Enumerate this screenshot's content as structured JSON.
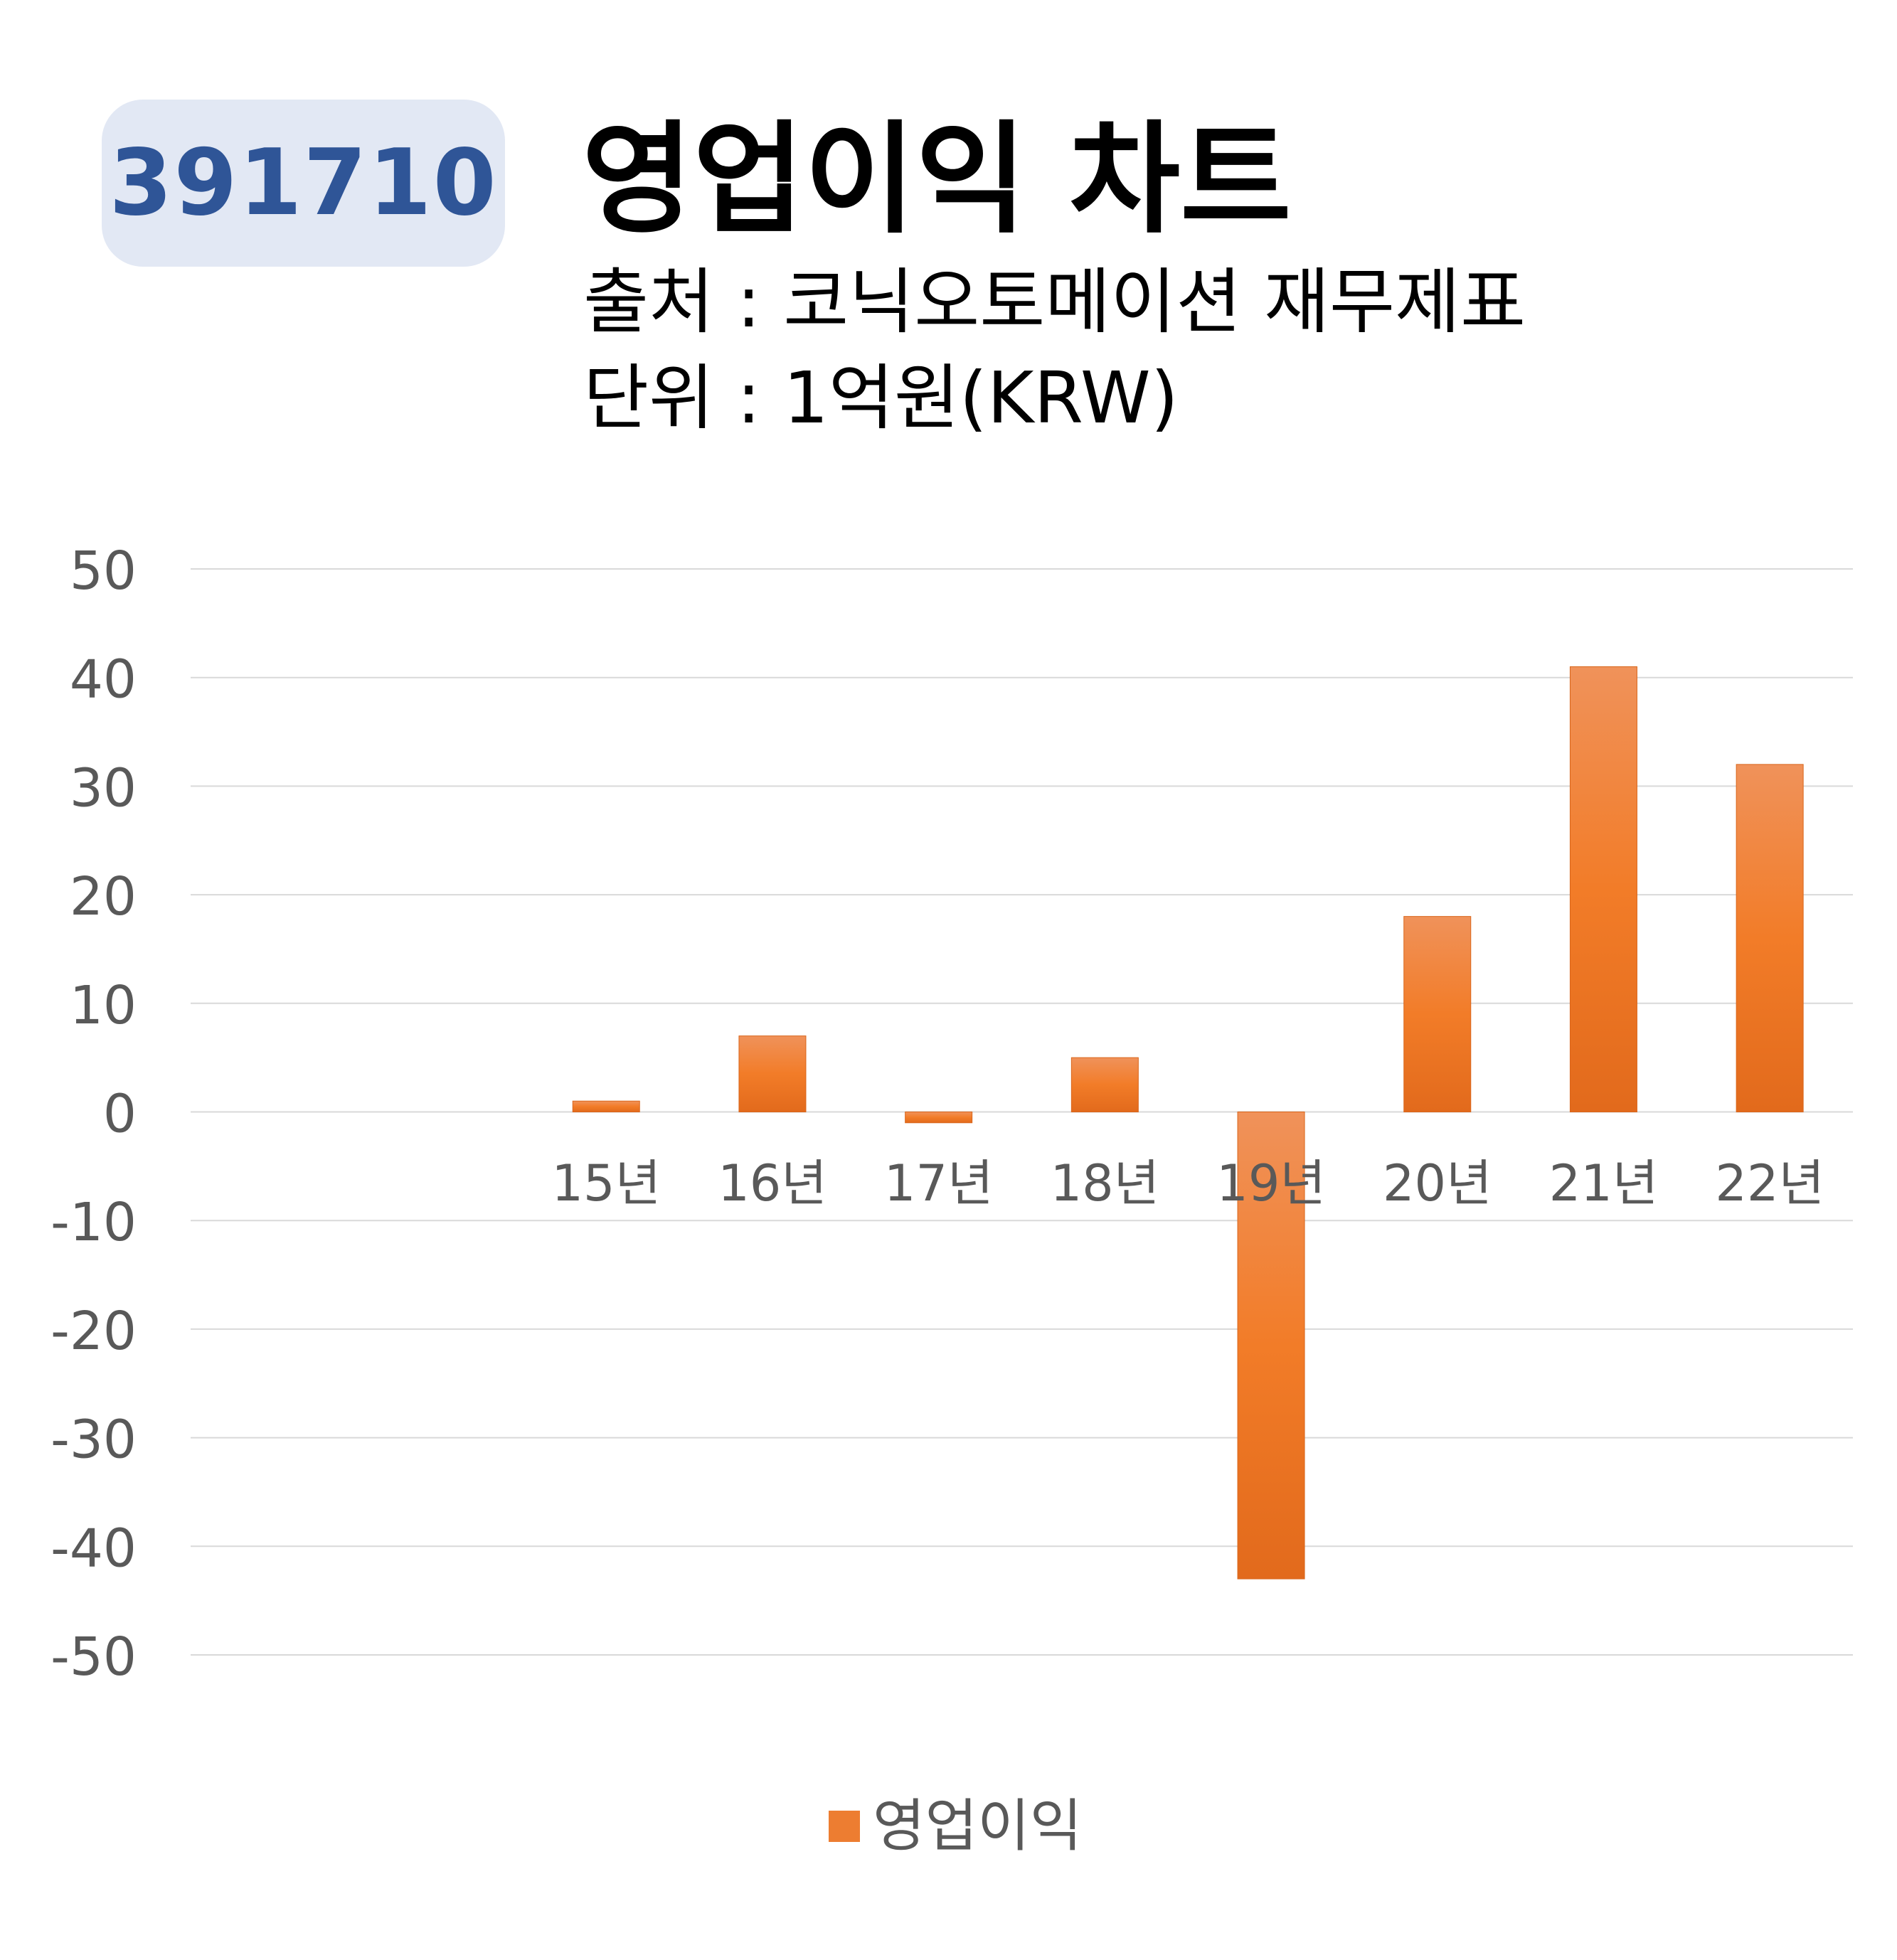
{
  "header": {
    "code": "391710",
    "title": "영업이익 차트",
    "source_line": "출처 : 코닉오토메이션 재무제표",
    "unit_line": "단위 : 1억원(KRW)"
  },
  "colors": {
    "badge_bg": "#e2e8f4",
    "badge_text": "#2f5597",
    "bar": "#ed7d31",
    "grid": "#d9d9d9",
    "axis_text": "#595959"
  },
  "chart_data": {
    "type": "bar",
    "categories": [
      "",
      "",
      "15년",
      "16년",
      "17년",
      "18년",
      "19년",
      "20년",
      "21년",
      "22년"
    ],
    "series": [
      {
        "name": "영업이익",
        "values": [
          null,
          null,
          1,
          7,
          -1,
          5,
          -43,
          18,
          41,
          32
        ]
      }
    ],
    "yticks": [
      50,
      40,
      30,
      20,
      10,
      0,
      -10,
      -20,
      -30,
      -40,
      -50
    ],
    "ylim": [
      -50,
      50
    ],
    "grid": true,
    "legend_position": "bottom"
  }
}
